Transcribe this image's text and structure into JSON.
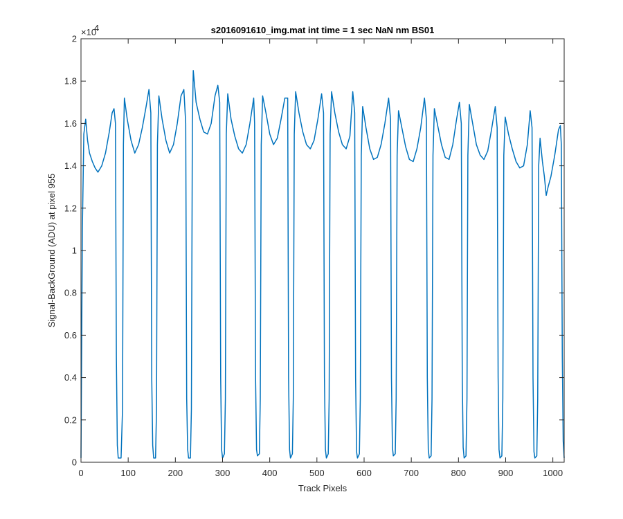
{
  "chart_data": {
    "type": "line",
    "title": "s2016091610_img.mat int time = 1 sec  NaN nm BS01",
    "xlabel": "Track Pixels",
    "ylabel": "Signal-BackGround (ADU) at pixel 955",
    "xlim": [
      0,
      1024
    ],
    "ylim": [
      0,
      20000
    ],
    "x_ticks": [
      0,
      100,
      200,
      300,
      400,
      500,
      600,
      700,
      800,
      900,
      1000
    ],
    "y_ticks": [
      0,
      2000,
      4000,
      6000,
      8000,
      10000,
      12000,
      14000,
      16000,
      18000,
      20000
    ],
    "x_tick_labels": [
      "0",
      "100",
      "200",
      "300",
      "400",
      "500",
      "600",
      "700",
      "800",
      "900",
      "1000"
    ],
    "y_tick_labels": [
      "0",
      "0.2",
      "0.4",
      "0.6",
      "0.8",
      "1",
      "1.2",
      "1.4",
      "1.6",
      "1.8",
      "2"
    ],
    "y_exponent_label": "×10",
    "y_exponent_power": "4",
    "grid": false,
    "line_color": "#0072BD",
    "series": [
      {
        "values": [
          [
            0,
            200
          ],
          [
            3,
            11000
          ],
          [
            6,
            15500
          ],
          [
            10,
            16200
          ],
          [
            14,
            15200
          ],
          [
            18,
            14600
          ],
          [
            24,
            14200
          ],
          [
            30,
            13900
          ],
          [
            36,
            13700
          ],
          [
            44,
            14000
          ],
          [
            52,
            14600
          ],
          [
            60,
            15600
          ],
          [
            66,
            16500
          ],
          [
            70,
            16700
          ],
          [
            73,
            16000
          ],
          [
            75,
            5000
          ],
          [
            77,
            800
          ],
          [
            79,
            200
          ],
          [
            85,
            200
          ],
          [
            88,
            2500
          ],
          [
            90,
            15000
          ],
          [
            92,
            17200
          ],
          [
            98,
            16200
          ],
          [
            106,
            15200
          ],
          [
            114,
            14600
          ],
          [
            122,
            15000
          ],
          [
            130,
            15800
          ],
          [
            138,
            16800
          ],
          [
            144,
            17600
          ],
          [
            148,
            16500
          ],
          [
            150,
            4000
          ],
          [
            152,
            800
          ],
          [
            154,
            200
          ],
          [
            158,
            200
          ],
          [
            160,
            2500
          ],
          [
            162,
            15000
          ],
          [
            165,
            17300
          ],
          [
            172,
            16200
          ],
          [
            180,
            15200
          ],
          [
            188,
            14600
          ],
          [
            196,
            15000
          ],
          [
            204,
            16000
          ],
          [
            212,
            17300
          ],
          [
            218,
            17600
          ],
          [
            222,
            16000
          ],
          [
            224,
            3000
          ],
          [
            226,
            600
          ],
          [
            228,
            200
          ],
          [
            232,
            200
          ],
          [
            234,
            2500
          ],
          [
            236,
            16000
          ],
          [
            238,
            18500
          ],
          [
            244,
            17000
          ],
          [
            252,
            16200
          ],
          [
            260,
            15600
          ],
          [
            268,
            15500
          ],
          [
            276,
            16000
          ],
          [
            284,
            17300
          ],
          [
            290,
            17800
          ],
          [
            294,
            17000
          ],
          [
            296,
            4000
          ],
          [
            298,
            600
          ],
          [
            300,
            200
          ],
          [
            304,
            400
          ],
          [
            306,
            3000
          ],
          [
            308,
            15500
          ],
          [
            311,
            17400
          ],
          [
            318,
            16200
          ],
          [
            326,
            15400
          ],
          [
            334,
            14800
          ],
          [
            342,
            14600
          ],
          [
            350,
            15000
          ],
          [
            358,
            16000
          ],
          [
            366,
            17200
          ],
          [
            368,
            16000
          ],
          [
            370,
            4000
          ],
          [
            372,
            600
          ],
          [
            374,
            300
          ],
          [
            378,
            400
          ],
          [
            380,
            3000
          ],
          [
            382,
            15000
          ],
          [
            385,
            17300
          ],
          [
            392,
            16500
          ],
          [
            400,
            15500
          ],
          [
            408,
            15000
          ],
          [
            416,
            15300
          ],
          [
            424,
            16200
          ],
          [
            432,
            17200
          ],
          [
            438,
            17200
          ],
          [
            440,
            4000
          ],
          [
            442,
            600
          ],
          [
            444,
            200
          ],
          [
            448,
            400
          ],
          [
            450,
            3000
          ],
          [
            452,
            15500
          ],
          [
            455,
            17500
          ],
          [
            462,
            16500
          ],
          [
            470,
            15600
          ],
          [
            478,
            15000
          ],
          [
            486,
            14800
          ],
          [
            494,
            15200
          ],
          [
            502,
            16200
          ],
          [
            510,
            17400
          ],
          [
            514,
            16500
          ],
          [
            516,
            4000
          ],
          [
            518,
            600
          ],
          [
            520,
            200
          ],
          [
            524,
            400
          ],
          [
            526,
            3000
          ],
          [
            528,
            15500
          ],
          [
            531,
            17500
          ],
          [
            538,
            16500
          ],
          [
            546,
            15600
          ],
          [
            554,
            15000
          ],
          [
            562,
            14800
          ],
          [
            570,
            15400
          ],
          [
            576,
            17500
          ],
          [
            580,
            16500
          ],
          [
            582,
            4000
          ],
          [
            584,
            500
          ],
          [
            586,
            200
          ],
          [
            590,
            400
          ],
          [
            592,
            3000
          ],
          [
            594,
            14500
          ],
          [
            597,
            16800
          ],
          [
            604,
            15800
          ],
          [
            612,
            14800
          ],
          [
            620,
            14300
          ],
          [
            628,
            14400
          ],
          [
            636,
            15000
          ],
          [
            644,
            16000
          ],
          [
            652,
            17200
          ],
          [
            656,
            16200
          ],
          [
            658,
            4000
          ],
          [
            660,
            700
          ],
          [
            662,
            300
          ],
          [
            666,
            400
          ],
          [
            668,
            3000
          ],
          [
            670,
            14500
          ],
          [
            673,
            16600
          ],
          [
            680,
            15800
          ],
          [
            688,
            14900
          ],
          [
            696,
            14300
          ],
          [
            704,
            14200
          ],
          [
            712,
            14800
          ],
          [
            720,
            15800
          ],
          [
            728,
            17200
          ],
          [
            732,
            16200
          ],
          [
            734,
            4000
          ],
          [
            736,
            600
          ],
          [
            738,
            200
          ],
          [
            742,
            300
          ],
          [
            744,
            3000
          ],
          [
            746,
            14500
          ],
          [
            749,
            16700
          ],
          [
            756,
            15900
          ],
          [
            764,
            15000
          ],
          [
            772,
            14400
          ],
          [
            780,
            14300
          ],
          [
            788,
            15000
          ],
          [
            796,
            16200
          ],
          [
            802,
            17000
          ],
          [
            806,
            16000
          ],
          [
            808,
            4000
          ],
          [
            810,
            700
          ],
          [
            812,
            200
          ],
          [
            816,
            300
          ],
          [
            818,
            3000
          ],
          [
            820,
            14500
          ],
          [
            823,
            16900
          ],
          [
            830,
            16000
          ],
          [
            838,
            15000
          ],
          [
            846,
            14500
          ],
          [
            854,
            14300
          ],
          [
            862,
            14700
          ],
          [
            870,
            15700
          ],
          [
            878,
            16800
          ],
          [
            882,
            15800
          ],
          [
            884,
            4000
          ],
          [
            886,
            600
          ],
          [
            888,
            200
          ],
          [
            892,
            300
          ],
          [
            894,
            3000
          ],
          [
            896,
            14500
          ],
          [
            899,
            16300
          ],
          [
            906,
            15500
          ],
          [
            914,
            14800
          ],
          [
            922,
            14200
          ],
          [
            930,
            13900
          ],
          [
            938,
            14000
          ],
          [
            946,
            15000
          ],
          [
            952,
            16600
          ],
          [
            956,
            15800
          ],
          [
            958,
            4000
          ],
          [
            960,
            500
          ],
          [
            962,
            200
          ],
          [
            966,
            300
          ],
          [
            968,
            3000
          ],
          [
            970,
            14000
          ],
          [
            973,
            15300
          ],
          [
            978,
            14200
          ],
          [
            982,
            13500
          ],
          [
            986,
            12600
          ],
          [
            990,
            13000
          ],
          [
            996,
            13500
          ],
          [
            1004,
            14500
          ],
          [
            1012,
            15700
          ],
          [
            1016,
            15900
          ],
          [
            1018,
            15000
          ],
          [
            1020,
            5000
          ],
          [
            1022,
            1000
          ],
          [
            1024,
            200
          ]
        ]
      }
    ]
  }
}
